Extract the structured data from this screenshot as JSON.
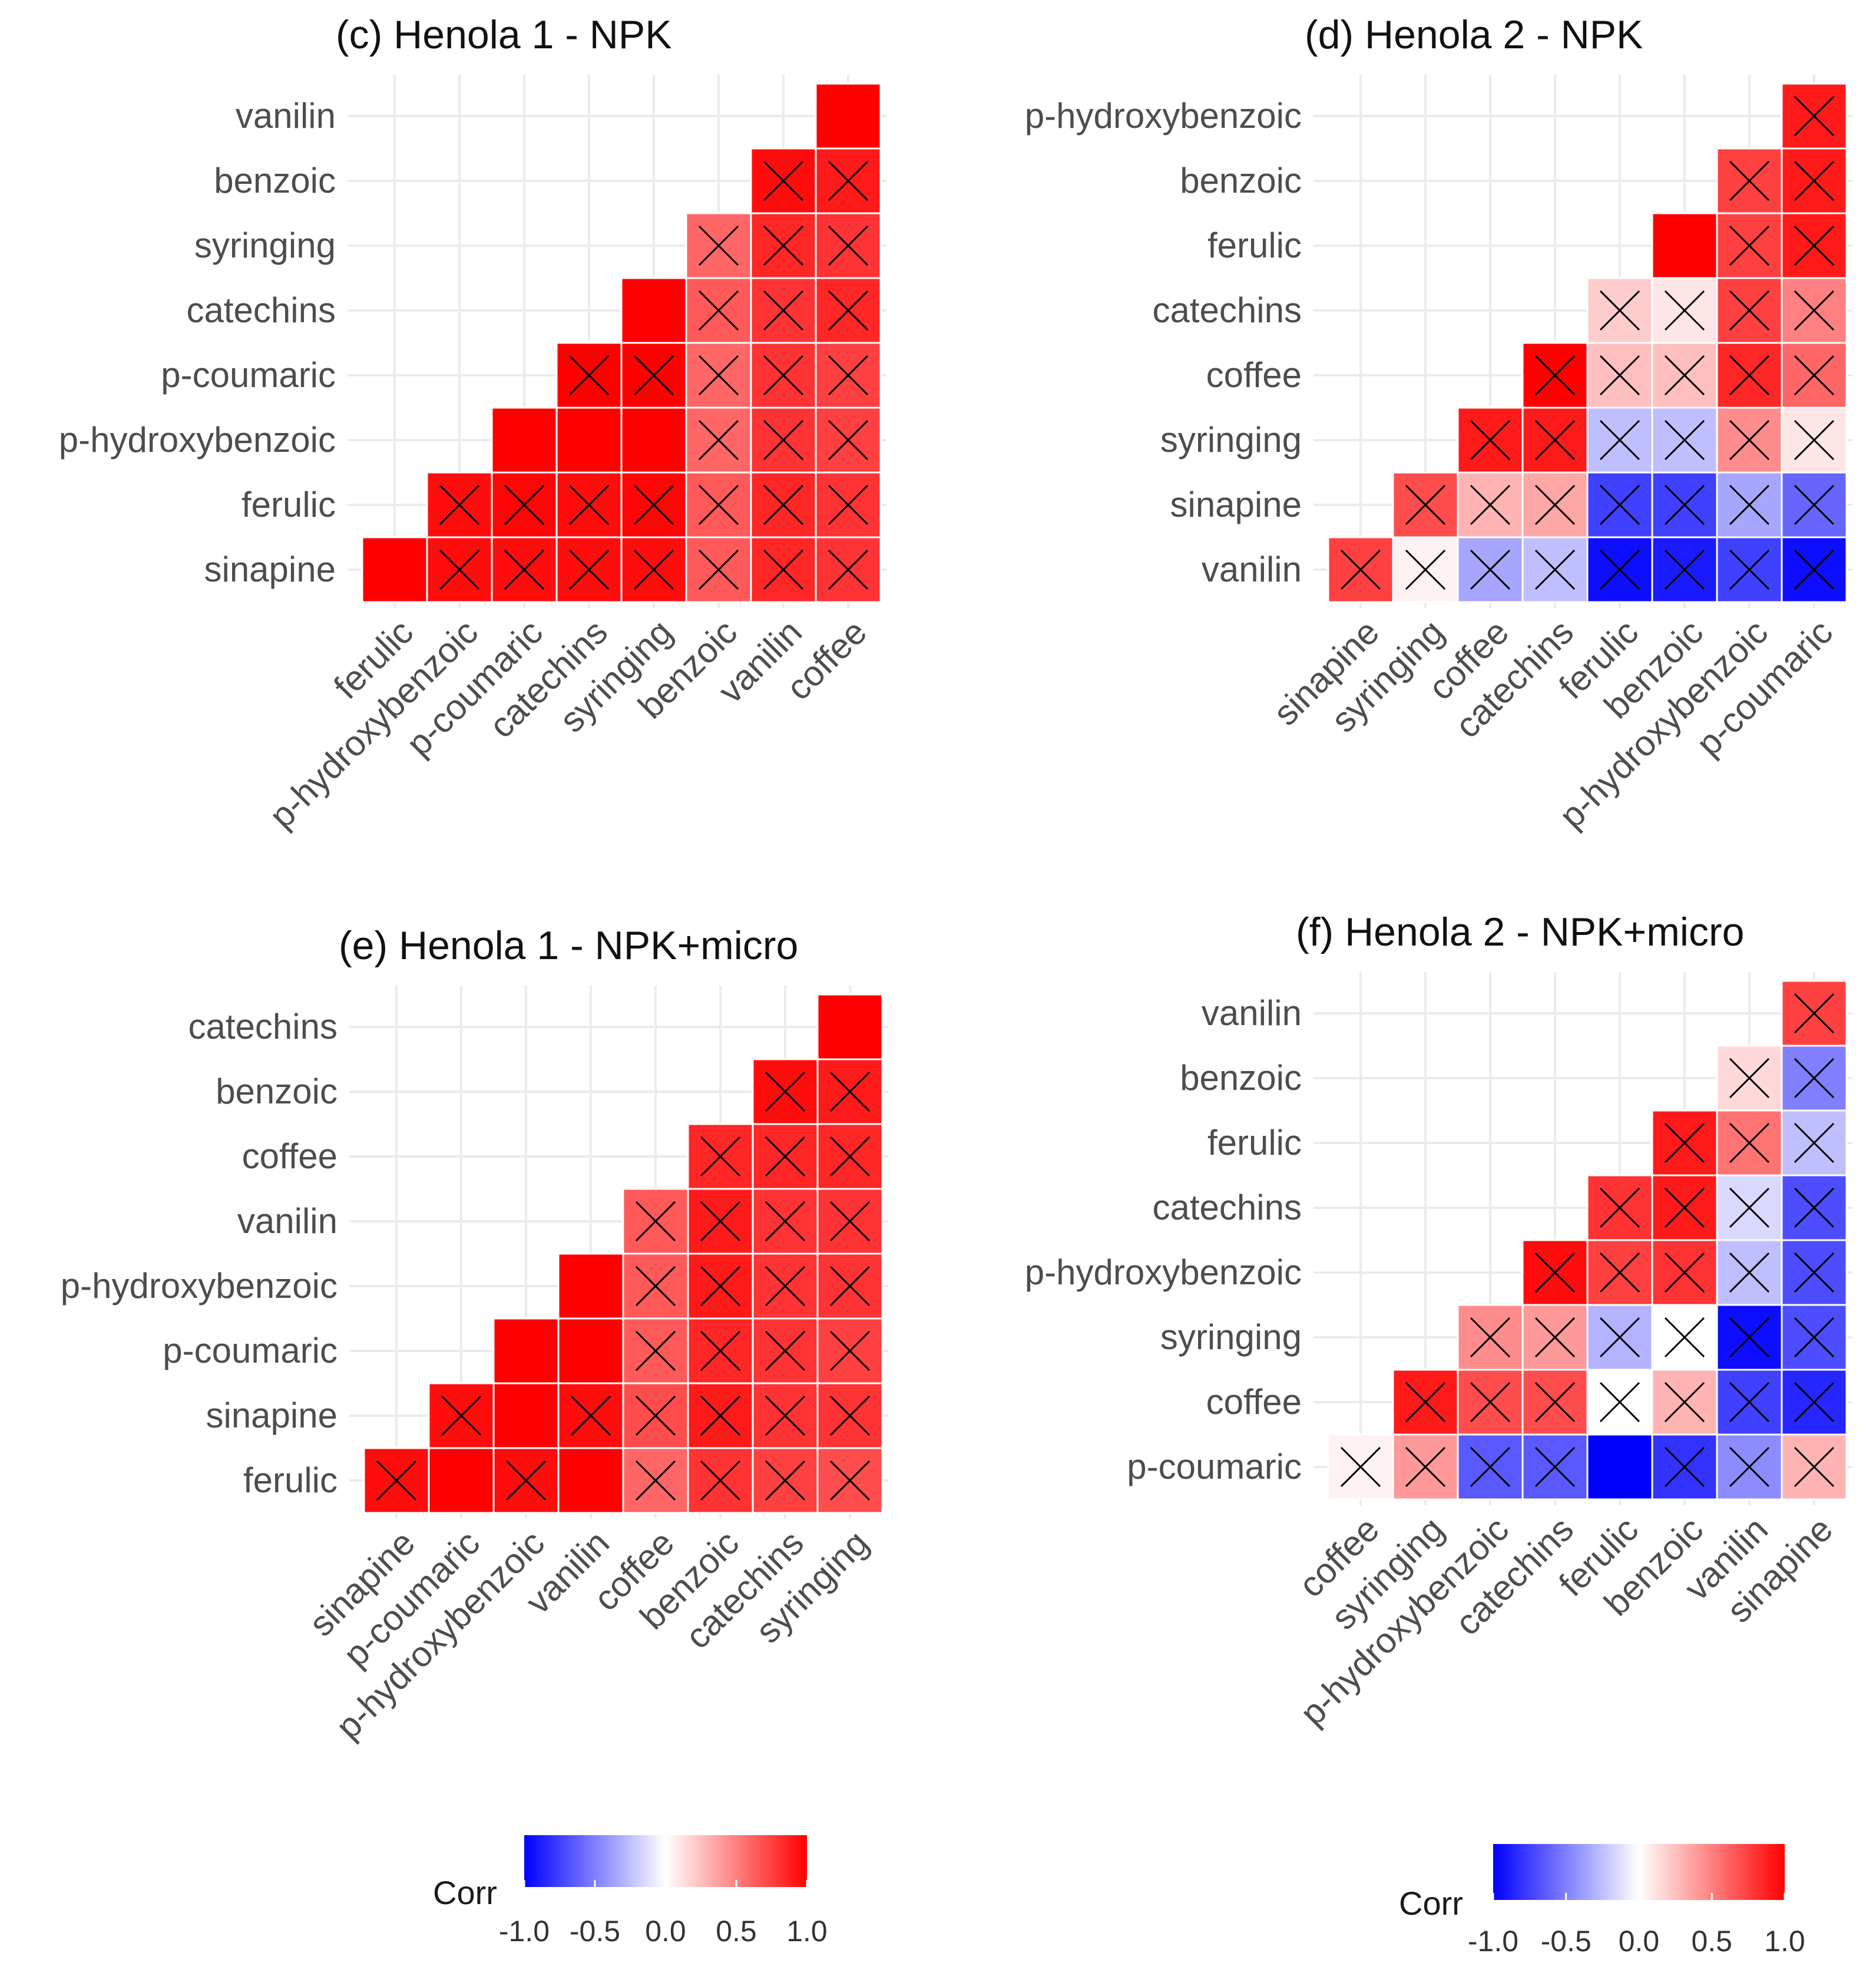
{
  "colors": {
    "low": "#0000ff",
    "mid": "#ffffff",
    "high": "#ff0000"
  },
  "chart_data": [
    {
      "type": "heatmap",
      "title": "(c) Henola 1 - NPK",
      "x": [
        "ferulic",
        "p-hydroxybenzoic",
        "p-coumaric",
        "catechins",
        "syringing",
        "benzoic",
        "vanilin",
        "coffee"
      ],
      "y": [
        "sinapine",
        "ferulic",
        "p-hydroxybenzoic",
        "p-coumaric",
        "catechins",
        "syringing",
        "benzoic",
        "vanilin"
      ],
      "values": [
        [
          1.0,
          0.95,
          0.95,
          0.95,
          0.95,
          0.65,
          0.85,
          0.8
        ],
        [
          null,
          0.95,
          0.98,
          0.95,
          0.98,
          0.65,
          0.85,
          0.8
        ],
        [
          null,
          null,
          1.0,
          1.0,
          1.0,
          0.6,
          0.8,
          0.75
        ],
        [
          null,
          null,
          null,
          1.0,
          1.0,
          0.6,
          0.8,
          0.75
        ],
        [
          null,
          null,
          null,
          null,
          1.0,
          0.65,
          0.8,
          0.85
        ],
        [
          null,
          null,
          null,
          null,
          null,
          0.6,
          0.85,
          0.8
        ],
        [
          null,
          null,
          null,
          null,
          null,
          null,
          0.95,
          0.9
        ],
        [
          null,
          null,
          null,
          null,
          null,
          null,
          null,
          1.0
        ]
      ],
      "crossed": [
        [
          false,
          true,
          true,
          true,
          true,
          true,
          true,
          true
        ],
        [
          false,
          true,
          true,
          true,
          true,
          true,
          true,
          true
        ],
        [
          false,
          false,
          false,
          false,
          false,
          true,
          true,
          true
        ],
        [
          false,
          false,
          false,
          true,
          true,
          true,
          true,
          true
        ],
        [
          false,
          false,
          false,
          false,
          false,
          true,
          true,
          true
        ],
        [
          false,
          false,
          false,
          false,
          false,
          true,
          true,
          true
        ],
        [
          false,
          false,
          false,
          false,
          false,
          false,
          true,
          true
        ],
        [
          false,
          false,
          false,
          false,
          false,
          false,
          false,
          false
        ]
      ]
    },
    {
      "type": "heatmap",
      "title": "(d) Henola 2 - NPK",
      "x": [
        "sinapine",
        "syringing",
        "coffee",
        "catechins",
        "ferulic",
        "benzoic",
        "p-hydroxybenzoic",
        "p-coumaric"
      ],
      "y": [
        "vanilin",
        "sinapine",
        "syringing",
        "coffee",
        "catechins",
        "ferulic",
        "benzoic",
        "p-hydroxybenzoic"
      ],
      "values": [
        [
          0.75,
          0.05,
          -0.35,
          -0.25,
          -0.95,
          -0.9,
          -0.75,
          -0.95
        ],
        [
          null,
          0.7,
          0.3,
          0.35,
          -0.75,
          -0.75,
          -0.35,
          -0.6
        ],
        [
          null,
          null,
          0.9,
          0.9,
          -0.25,
          -0.25,
          0.45,
          0.1
        ],
        [
          null,
          null,
          null,
          1.0,
          0.25,
          0.25,
          0.85,
          0.6
        ],
        [
          null,
          null,
          null,
          null,
          0.2,
          0.1,
          0.75,
          0.5
        ],
        [
          null,
          null,
          null,
          null,
          null,
          1.0,
          0.75,
          0.9
        ],
        [
          null,
          null,
          null,
          null,
          null,
          null,
          0.75,
          0.9
        ],
        [
          null,
          null,
          null,
          null,
          null,
          null,
          null,
          0.9
        ]
      ],
      "crossed": [
        [
          true,
          true,
          true,
          true,
          true,
          true,
          true,
          true
        ],
        [
          false,
          true,
          true,
          true,
          true,
          true,
          true,
          true
        ],
        [
          false,
          false,
          true,
          true,
          true,
          true,
          true,
          true
        ],
        [
          false,
          false,
          false,
          true,
          true,
          true,
          true,
          true
        ],
        [
          false,
          false,
          false,
          false,
          true,
          true,
          true,
          true
        ],
        [
          false,
          false,
          false,
          false,
          false,
          false,
          true,
          true
        ],
        [
          false,
          false,
          false,
          false,
          false,
          false,
          true,
          true
        ],
        [
          false,
          false,
          false,
          false,
          false,
          false,
          false,
          true
        ]
      ]
    },
    {
      "type": "heatmap",
      "title": "(e) Henola 1 - NPK+micro",
      "x": [
        "sinapine",
        "p-coumaric",
        "p-hydroxybenzoic",
        "vanilin",
        "coffee",
        "benzoic",
        "catechins",
        "syringing"
      ],
      "y": [
        "ferulic",
        "sinapine",
        "p-coumaric",
        "p-hydroxybenzoic",
        "vanilin",
        "coffee",
        "benzoic",
        "catechins"
      ],
      "values": [
        [
          0.95,
          1.0,
          0.95,
          1.0,
          0.6,
          0.8,
          0.75,
          0.7
        ],
        [
          null,
          0.95,
          1.0,
          0.95,
          0.7,
          0.9,
          0.8,
          0.8
        ],
        [
          null,
          null,
          1.0,
          1.0,
          0.65,
          0.85,
          0.8,
          0.75
        ],
        [
          null,
          null,
          null,
          1.0,
          0.65,
          0.9,
          0.8,
          0.8
        ],
        [
          null,
          null,
          null,
          null,
          0.65,
          0.9,
          0.8,
          0.8
        ],
        [
          null,
          null,
          null,
          null,
          null,
          0.85,
          0.85,
          0.85
        ],
        [
          null,
          null,
          null,
          null,
          null,
          null,
          0.95,
          0.9
        ],
        [
          null,
          null,
          null,
          null,
          null,
          null,
          null,
          1.0
        ]
      ],
      "crossed": [
        [
          true,
          false,
          true,
          false,
          true,
          true,
          true,
          true
        ],
        [
          false,
          true,
          false,
          true,
          true,
          true,
          true,
          true
        ],
        [
          false,
          false,
          false,
          false,
          true,
          true,
          true,
          true
        ],
        [
          false,
          false,
          false,
          false,
          true,
          true,
          true,
          true
        ],
        [
          false,
          false,
          false,
          false,
          true,
          true,
          true,
          true
        ],
        [
          false,
          false,
          false,
          false,
          false,
          true,
          true,
          true
        ],
        [
          false,
          false,
          false,
          false,
          false,
          false,
          true,
          true
        ],
        [
          false,
          false,
          false,
          false,
          false,
          false,
          false,
          false
        ]
      ]
    },
    {
      "type": "heatmap",
      "title": "(f) Henola 2 - NPK+micro",
      "x": [
        "coffee",
        "syringing",
        "p-hydroxybenzoic",
        "catechins",
        "ferulic",
        "benzoic",
        "vanilin",
        "sinapine"
      ],
      "y": [
        "p-coumaric",
        "coffee",
        "syringing",
        "p-hydroxybenzoic",
        "catechins",
        "ferulic",
        "benzoic",
        "vanilin"
      ],
      "values": [
        [
          0.05,
          0.4,
          -0.65,
          -0.65,
          -1.0,
          -0.8,
          -0.45,
          0.3
        ],
        [
          null,
          0.9,
          0.7,
          0.7,
          0.0,
          0.3,
          -0.75,
          -0.85
        ],
        [
          null,
          null,
          0.45,
          0.4,
          -0.3,
          0.0,
          -0.95,
          -0.7
        ],
        [
          null,
          null,
          null,
          0.95,
          0.75,
          0.8,
          -0.25,
          -0.7
        ],
        [
          null,
          null,
          null,
          null,
          0.8,
          0.9,
          -0.15,
          -0.7
        ],
        [
          null,
          null,
          null,
          null,
          null,
          0.9,
          0.55,
          -0.25
        ],
        [
          null,
          null,
          null,
          null,
          null,
          null,
          0.15,
          -0.5
        ],
        [
          null,
          null,
          null,
          null,
          null,
          null,
          null,
          0.75
        ]
      ],
      "crossed": [
        [
          true,
          true,
          true,
          true,
          false,
          true,
          true,
          true
        ],
        [
          false,
          true,
          true,
          true,
          true,
          true,
          true,
          true
        ],
        [
          false,
          false,
          true,
          true,
          true,
          true,
          true,
          true
        ],
        [
          false,
          false,
          false,
          true,
          true,
          true,
          true,
          true
        ],
        [
          false,
          false,
          false,
          false,
          true,
          true,
          true,
          true
        ],
        [
          false,
          false,
          false,
          false,
          false,
          true,
          true,
          true
        ],
        [
          false,
          false,
          false,
          false,
          false,
          false,
          true,
          true
        ],
        [
          false,
          false,
          false,
          false,
          false,
          false,
          false,
          true
        ]
      ]
    }
  ],
  "legends": [
    {
      "title": "Corr",
      "ticks": [
        "-1.0",
        "-0.5",
        "0.0",
        "0.5",
        "1.0"
      ],
      "range": [
        -1,
        1
      ]
    },
    {
      "title": "Corr",
      "ticks": [
        "-1.0",
        "-0.5",
        "0.0",
        "0.5",
        "1.0"
      ],
      "range": [
        -1,
        1
      ]
    }
  ]
}
